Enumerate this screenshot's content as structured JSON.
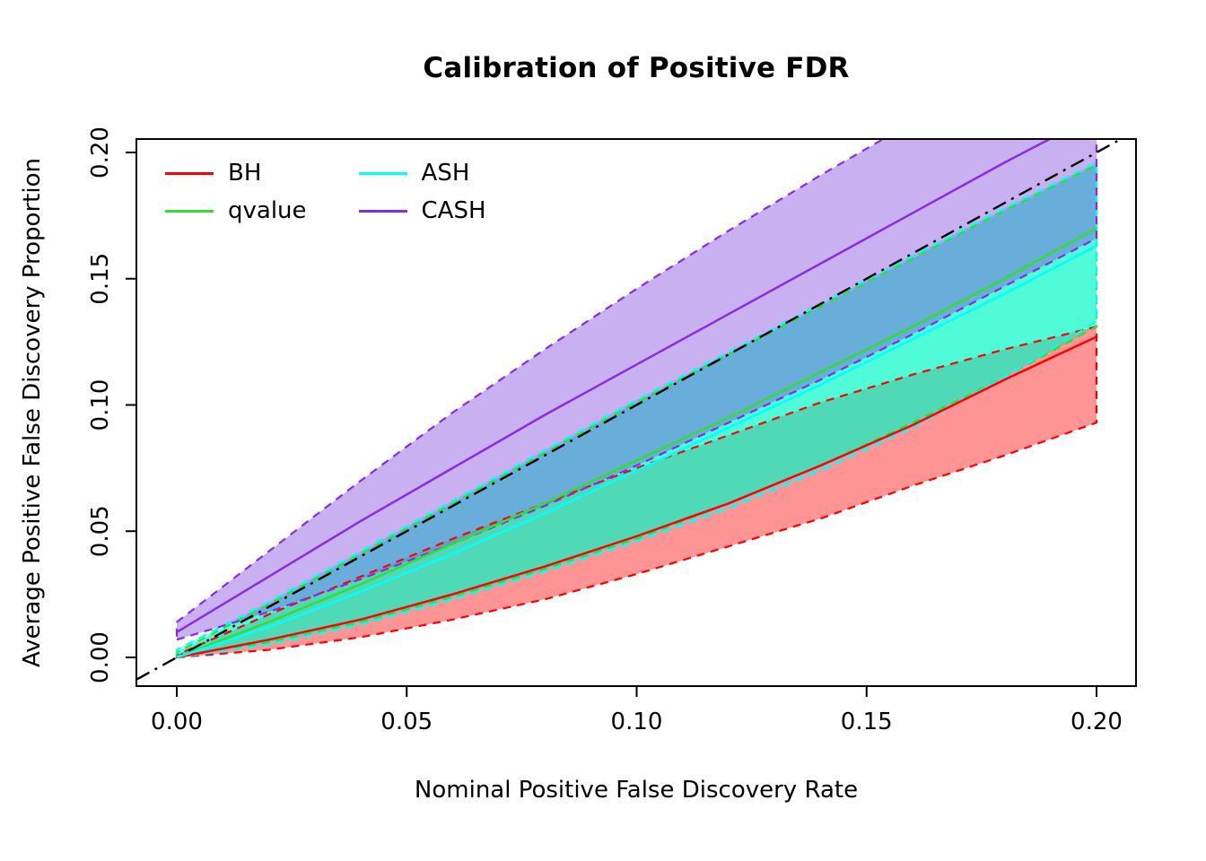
{
  "title": "Calibration of Positive FDR",
  "x_axis": {
    "label": "Nominal Positive False Discovery Rate",
    "ticks": [
      "0.00",
      "0.05",
      "0.10",
      "0.15",
      "0.20"
    ],
    "tick_values": [
      0,
      0.05,
      0.1,
      0.15,
      0.2
    ],
    "range": [
      0,
      0.2
    ]
  },
  "y_axis": {
    "label": "Average Positive False Discovery Proportion",
    "ticks": [
      "0.00",
      "0.05",
      "0.10",
      "0.15",
      "0.20"
    ],
    "tick_values": [
      0,
      0.05,
      0.1,
      0.15,
      0.2
    ],
    "range": [
      0,
      0.205
    ]
  },
  "legend": {
    "position": "top-left",
    "items": [
      {
        "label": "BH",
        "color": "#FF0000"
      },
      {
        "label": "qvalue",
        "color": "#33DD33"
      },
      {
        "label": "ASH",
        "color": "#00FFFF"
      },
      {
        "label": "CASH",
        "color": "#8A2BE2"
      }
    ]
  },
  "chart_data": {
    "type": "line",
    "title": "Calibration of Positive FDR",
    "xlabel": "Nominal Positive False Discovery Rate",
    "ylabel": "Average Positive False Discovery Proportion",
    "xlim": [
      0,
      0.2
    ],
    "ylim": [
      0,
      0.205
    ],
    "grid": false,
    "legend_position": "top-left",
    "reference_line": {
      "type": "identity",
      "color": "#000000",
      "style": "dot-dash",
      "from": [
        0,
        0
      ],
      "to": [
        0.2,
        0.2
      ]
    },
    "x": [
      0,
      0.02,
      0.04,
      0.06,
      0.08,
      0.1,
      0.12,
      0.14,
      0.16,
      0.18,
      0.2
    ],
    "series": [
      {
        "name": "BH",
        "color": "#FF0000",
        "fill": "rgba(255,0,0,0.42)",
        "mean": [
          0,
          0.007,
          0.015,
          0.025,
          0.036,
          0.048,
          0.061,
          0.076,
          0.092,
          0.11,
          0.127
        ],
        "lower": [
          0,
          0.003,
          0.008,
          0.015,
          0.023,
          0.033,
          0.044,
          0.055,
          0.068,
          0.08,
          0.093
        ],
        "upper": [
          0.001,
          0.017,
          0.032,
          0.047,
          0.061,
          0.075,
          0.088,
          0.101,
          0.112,
          0.122,
          0.131
        ]
      },
      {
        "name": "qvalue",
        "color": "#33DD33",
        "fill": "rgba(0,240,120,0.48)",
        "mean": [
          0,
          0.014,
          0.029,
          0.045,
          0.061,
          0.078,
          0.095,
          0.113,
          0.131,
          0.15,
          0.17
        ],
        "lower": [
          0,
          0.006,
          0.014,
          0.024,
          0.035,
          0.047,
          0.061,
          0.076,
          0.093,
          0.111,
          0.131
        ],
        "upper": [
          0.002,
          0.021,
          0.041,
          0.061,
          0.081,
          0.101,
          0.12,
          0.139,
          0.158,
          0.177,
          0.195
        ]
      },
      {
        "name": "ASH",
        "color": "#00FFFF",
        "fill": "rgba(0,255,255,0.40)",
        "mean": [
          0,
          0.012,
          0.026,
          0.041,
          0.057,
          0.074,
          0.091,
          0.108,
          0.126,
          0.144,
          0.163
        ],
        "lower": [
          0,
          0.005,
          0.013,
          0.023,
          0.034,
          0.046,
          0.059,
          0.074,
          0.091,
          0.111,
          0.133
        ],
        "upper": [
          0.003,
          0.022,
          0.042,
          0.062,
          0.082,
          0.102,
          0.121,
          0.14,
          0.159,
          0.178,
          0.196
        ]
      },
      {
        "name": "CASH",
        "color": "#8A2BE2",
        "fill": "rgba(135,80,225,0.45)",
        "mean": [
          0.01,
          0.032,
          0.054,
          0.075,
          0.096,
          0.116,
          0.136,
          0.156,
          0.176,
          0.196,
          0.215
        ],
        "lower": [
          0.007,
          0.018,
          0.031,
          0.045,
          0.06,
          0.076,
          0.093,
          0.11,
          0.128,
          0.147,
          0.166
        ],
        "upper": [
          0.014,
          0.042,
          0.07,
          0.097,
          0.122,
          0.146,
          0.169,
          0.191,
          0.212,
          0.232,
          0.251
        ]
      }
    ]
  }
}
